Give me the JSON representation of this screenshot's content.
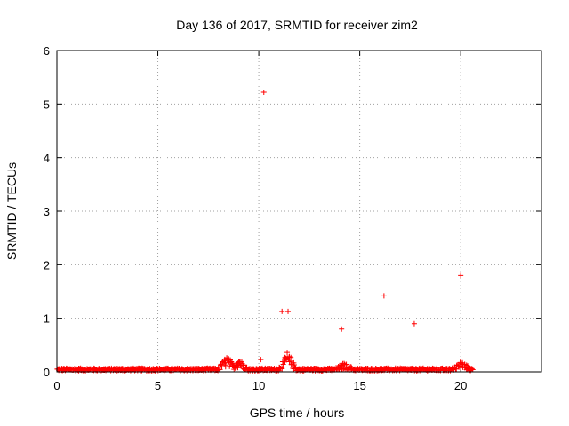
{
  "chart_data": {
    "type": "scatter",
    "title": "Day 136 of 2017, SRMTID for receiver zim2",
    "xlabel": "GPS time / hours",
    "ylabel": "SRMTID / TECUs",
    "xlim": [
      0,
      24
    ],
    "ylim": [
      0,
      6
    ],
    "x_ticks": [
      0,
      5,
      10,
      15,
      20
    ],
    "x_tick_labels": [
      "0",
      "5",
      "10",
      "15",
      "20"
    ],
    "y_ticks": [
      0,
      1,
      2,
      3,
      4,
      5,
      6
    ],
    "y_tick_labels": [
      "0",
      "1",
      "2",
      "3",
      "4",
      "5",
      "6"
    ],
    "grid": true,
    "marker": "+",
    "series": [
      {
        "name": "SRMTID",
        "color": "#ff0000",
        "outliers": [
          {
            "x": 10.25,
            "y": 5.22
          },
          {
            "x": 10.1,
            "y": 0.23
          },
          {
            "x": 11.15,
            "y": 1.13
          },
          {
            "x": 11.45,
            "y": 1.13
          },
          {
            "x": 14.1,
            "y": 0.8
          },
          {
            "x": 16.2,
            "y": 1.42
          },
          {
            "x": 17.7,
            "y": 0.9
          },
          {
            "x": 20.0,
            "y": 1.8
          }
        ],
        "baseline": {
          "x_start": 0,
          "x_end": 20.6,
          "step": 0.05,
          "typical_value": 0.05,
          "bumps": [
            {
              "x": 8.4,
              "y": 0.22
            },
            {
              "x": 9.0,
              "y": 0.2
            },
            {
              "x": 11.4,
              "y": 0.27
            },
            {
              "x": 14.2,
              "y": 0.12
            },
            {
              "x": 20.0,
              "y": 0.15
            }
          ]
        }
      }
    ]
  }
}
